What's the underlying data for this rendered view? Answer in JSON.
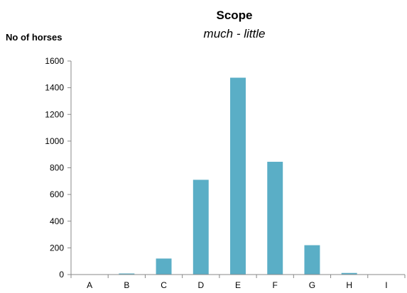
{
  "chart_data": {
    "type": "bar",
    "title": "Scope",
    "subtitle": "much - little",
    "ylabel": "No of horses",
    "xlabel": "",
    "categories": [
      "A",
      "B",
      "C",
      "D",
      "E",
      "F",
      "G",
      "H",
      "I"
    ],
    "values": [
      0,
      8,
      120,
      710,
      1475,
      845,
      220,
      12,
      0
    ],
    "ylim": [
      0,
      1600
    ],
    "yticks": [
      0,
      200,
      400,
      600,
      800,
      1000,
      1200,
      1400,
      1600
    ],
    "grid": false,
    "legend": "none",
    "bar_color": "#5aaec6"
  }
}
